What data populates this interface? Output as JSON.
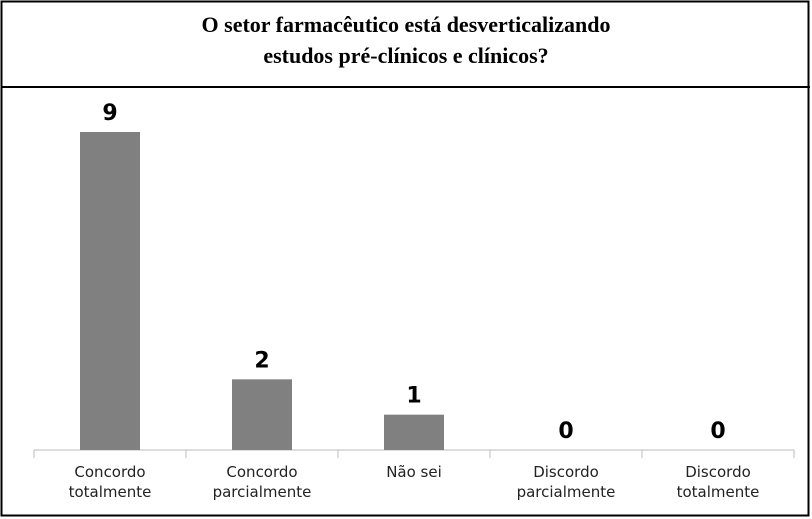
{
  "chart_data": {
    "type": "bar",
    "title": [
      "O setor farmacêutico está desverticalizando",
      "estudos pré-clínicos e clínicos?"
    ],
    "categories": [
      "Concordo totalmente",
      "Concordo parcialmente",
      "Não sei",
      "Discordo parcialmente",
      "Discordo totalmente"
    ],
    "values": [
      9,
      2,
      1,
      0,
      0
    ],
    "color": "#808080"
  }
}
